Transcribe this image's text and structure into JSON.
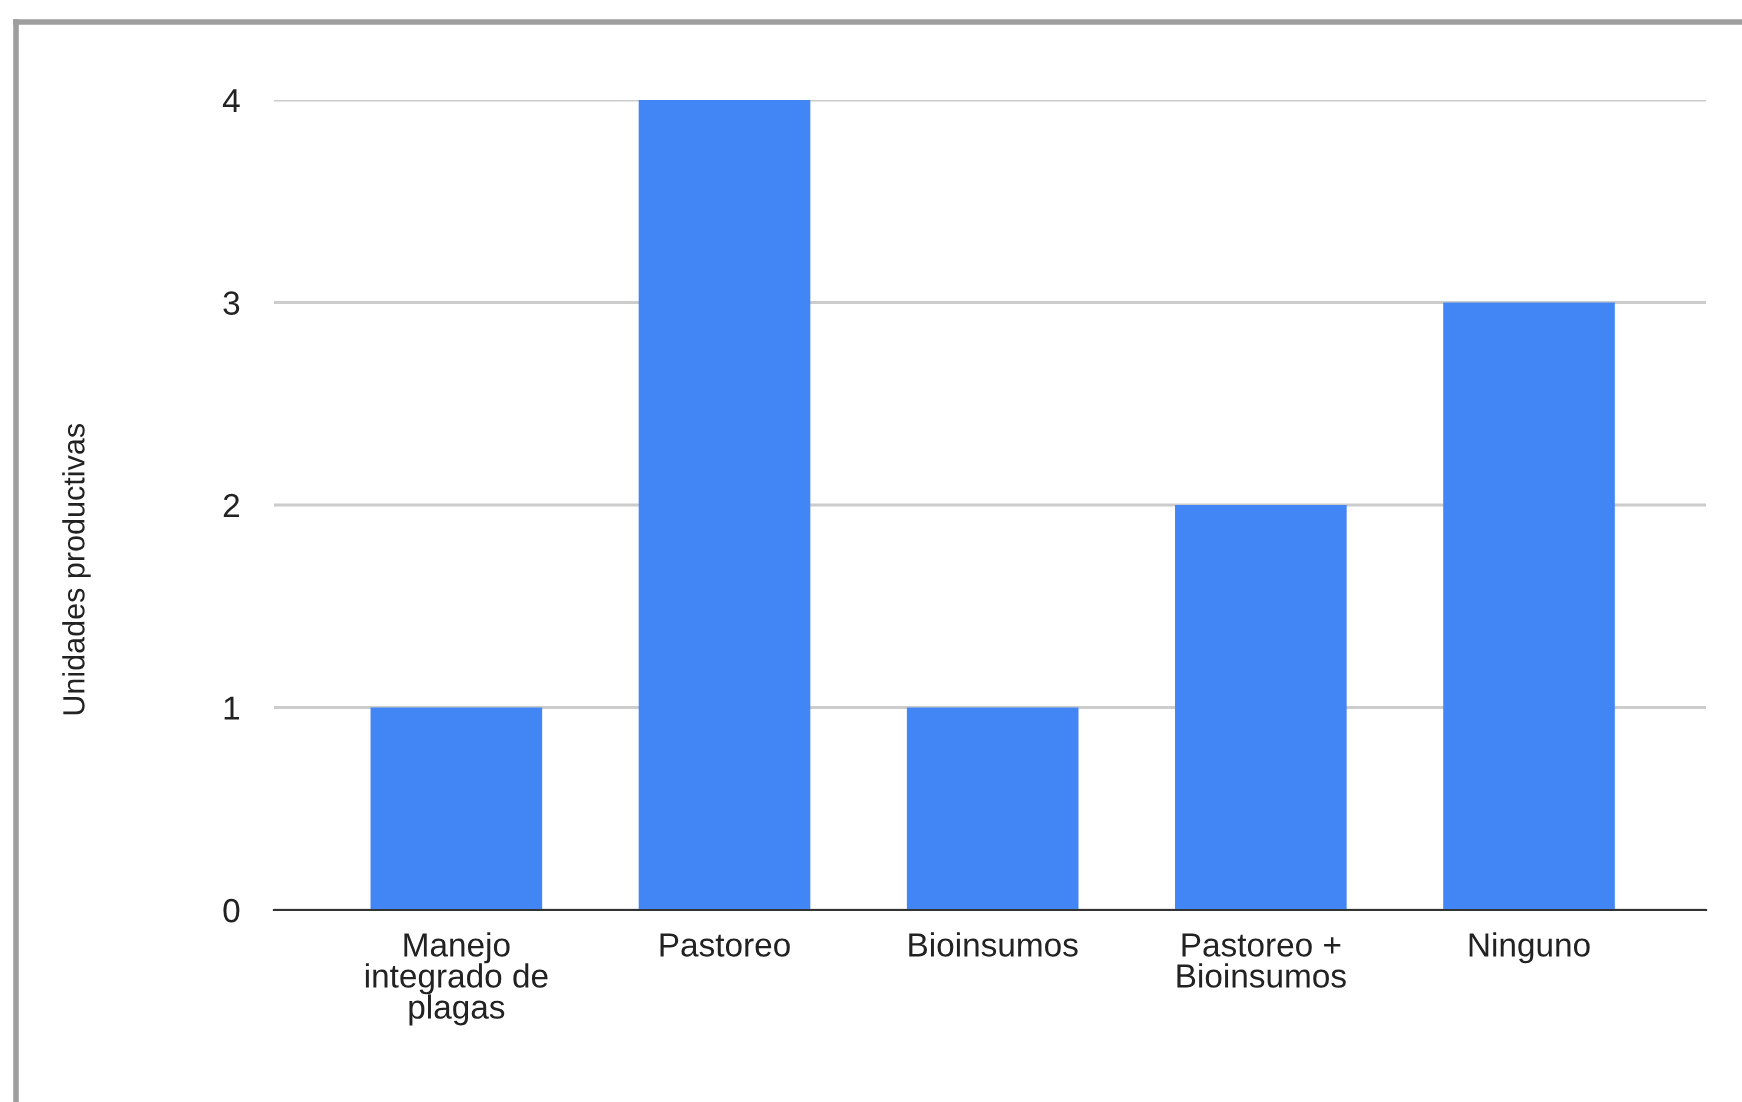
{
  "chart_data": {
    "type": "bar",
    "ylabel": "Unidades productivas",
    "categories": [
      "Manejo\nintegrado de\nplagas",
      "Pastoreo",
      "Bioinsumos",
      "Pastoreo +\nBioinsumos",
      "Ninguno"
    ],
    "values": [
      1,
      4,
      1,
      2,
      3
    ],
    "color": "#4285f4",
    "ylim": [
      0,
      4
    ],
    "yticks": [
      0,
      1,
      2,
      3,
      4
    ],
    "grid": "y"
  }
}
